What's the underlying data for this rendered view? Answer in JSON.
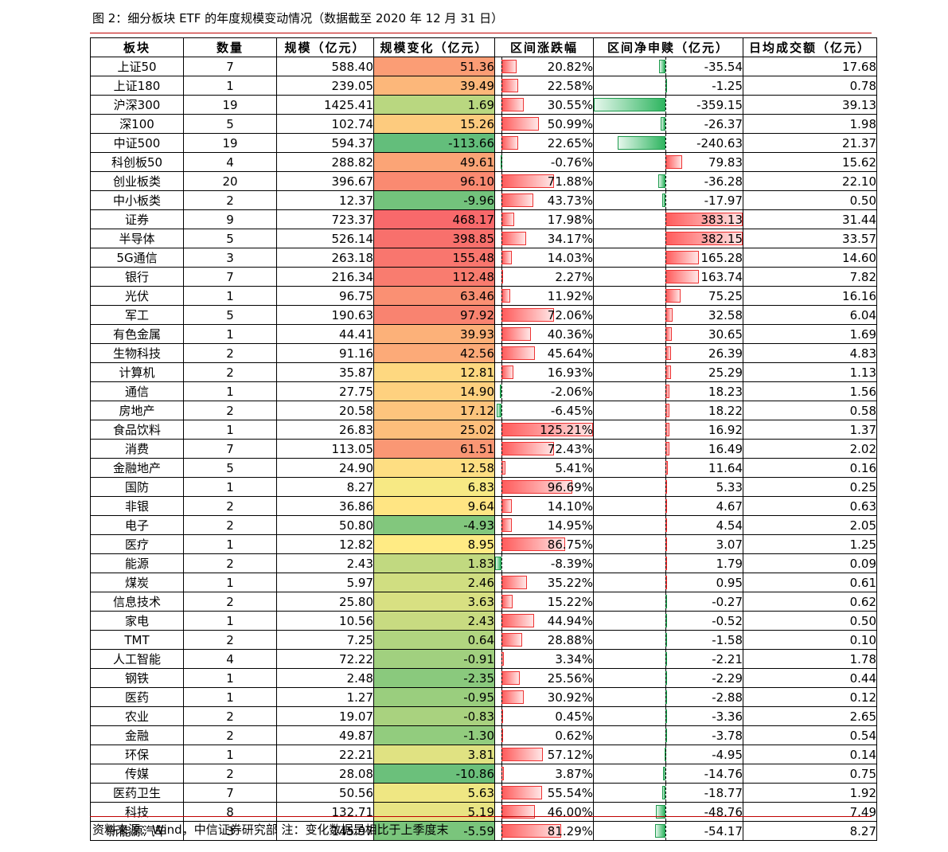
{
  "title": "图 2：细分板块 ETF 的年度规模变动情况（数据截至 2020 年 12 月 31 日）",
  "note": "资料来源：Wind，中信证券研究部  注：变化数据是相比于上季度末",
  "headers": [
    "板块",
    "数量",
    "规模（亿元）",
    "规模变化（亿元）",
    "区间涨跌幅",
    "区间净申赎（亿元）",
    "日均成交额（亿元）"
  ],
  "colors": {
    "rule": "#c00000",
    "bar_positive": "#ff5b5b",
    "bar_negative": "#2fb560",
    "heat_high": "#f8696b",
    "heat_mid": "#ffeb84",
    "heat_low": "#63be7b"
  },
  "rows": [
    {
      "name": "上证50",
      "count": "7",
      "scale": "588.40",
      "change": "51.36",
      "ret": "20.82%",
      "flow": "-35.54",
      "volume": "17.68"
    },
    {
      "name": "上证180",
      "count": "1",
      "scale": "239.05",
      "change": "39.49",
      "ret": "22.58%",
      "flow": "-1.25",
      "volume": "0.78"
    },
    {
      "name": "沪深300",
      "count": "19",
      "scale": "1425.41",
      "change": "1.69",
      "ret": "30.55%",
      "flow": "-359.15",
      "volume": "39.13"
    },
    {
      "name": "深100",
      "count": "5",
      "scale": "102.74",
      "change": "15.26",
      "ret": "50.99%",
      "flow": "-26.37",
      "volume": "1.98"
    },
    {
      "name": "中证500",
      "count": "19",
      "scale": "594.37",
      "change": "-113.66",
      "ret": "22.65%",
      "flow": "-240.63",
      "volume": "21.37"
    },
    {
      "name": "科创板50",
      "count": "4",
      "scale": "288.82",
      "change": "49.61",
      "ret": "-0.76%",
      "flow": "79.83",
      "volume": "15.62"
    },
    {
      "name": "创业板类",
      "count": "20",
      "scale": "396.67",
      "change": "96.10",
      "ret": "71.88%",
      "flow": "-36.28",
      "volume": "22.10"
    },
    {
      "name": "中小板类",
      "count": "2",
      "scale": "12.37",
      "change": "-9.96",
      "ret": "43.73%",
      "flow": "-17.97",
      "volume": "0.50"
    },
    {
      "name": "证券",
      "count": "9",
      "scale": "723.37",
      "change": "468.17",
      "ret": "17.98%",
      "flow": "383.13",
      "volume": "31.44"
    },
    {
      "name": "半导体",
      "count": "5",
      "scale": "526.14",
      "change": "398.85",
      "ret": "34.17%",
      "flow": "382.15",
      "volume": "33.57"
    },
    {
      "name": "5G通信",
      "count": "3",
      "scale": "263.18",
      "change": "155.48",
      "ret": "14.03%",
      "flow": "165.28",
      "volume": "14.60"
    },
    {
      "name": "银行",
      "count": "7",
      "scale": "216.34",
      "change": "112.48",
      "ret": "2.27%",
      "flow": "163.74",
      "volume": "7.82"
    },
    {
      "name": "光伏",
      "count": "1",
      "scale": "96.75",
      "change": "63.46",
      "ret": "11.92%",
      "flow": "75.25",
      "volume": "16.16"
    },
    {
      "name": "军工",
      "count": "5",
      "scale": "190.63",
      "change": "97.92",
      "ret": "72.06%",
      "flow": "32.58",
      "volume": "6.04"
    },
    {
      "name": "有色金属",
      "count": "1",
      "scale": "44.41",
      "change": "39.93",
      "ret": "40.36%",
      "flow": "30.65",
      "volume": "1.69"
    },
    {
      "name": "生物科技",
      "count": "2",
      "scale": "91.16",
      "change": "42.56",
      "ret": "45.64%",
      "flow": "26.39",
      "volume": "4.83"
    },
    {
      "name": "计算机",
      "count": "2",
      "scale": "35.87",
      "change": "12.81",
      "ret": "16.93%",
      "flow": "25.29",
      "volume": "1.13"
    },
    {
      "name": "通信",
      "count": "1",
      "scale": "27.75",
      "change": "14.90",
      "ret": "-2.06%",
      "flow": "18.23",
      "volume": "1.56"
    },
    {
      "name": "房地产",
      "count": "2",
      "scale": "20.58",
      "change": "17.12",
      "ret": "-6.45%",
      "flow": "18.22",
      "volume": "0.58"
    },
    {
      "name": "食品饮料",
      "count": "1",
      "scale": "26.83",
      "change": "25.02",
      "ret": "125.21%",
      "flow": "16.92",
      "volume": "1.37"
    },
    {
      "name": "消费",
      "count": "7",
      "scale": "113.05",
      "change": "61.51",
      "ret": "72.43%",
      "flow": "16.49",
      "volume": "2.02"
    },
    {
      "name": "金融地产",
      "count": "5",
      "scale": "24.90",
      "change": "12.58",
      "ret": "5.41%",
      "flow": "11.64",
      "volume": "0.16"
    },
    {
      "name": "国防",
      "count": "1",
      "scale": "8.27",
      "change": "6.83",
      "ret": "96.69%",
      "flow": "5.33",
      "volume": "0.25"
    },
    {
      "name": "非银",
      "count": "2",
      "scale": "36.86",
      "change": "9.64",
      "ret": "14.10%",
      "flow": "4.67",
      "volume": "0.63"
    },
    {
      "name": "电子",
      "count": "2",
      "scale": "50.80",
      "change": "-4.93",
      "ret": "14.95%",
      "flow": "4.54",
      "volume": "2.05"
    },
    {
      "name": "医疗",
      "count": "1",
      "scale": "12.82",
      "change": "8.95",
      "ret": "86.75%",
      "flow": "3.07",
      "volume": "1.25"
    },
    {
      "name": "能源",
      "count": "2",
      "scale": "2.43",
      "change": "1.83",
      "ret": "-8.39%",
      "flow": "1.79",
      "volume": "0.09"
    },
    {
      "name": "煤炭",
      "count": "1",
      "scale": "5.97",
      "change": "2.46",
      "ret": "35.22%",
      "flow": "0.95",
      "volume": "0.61"
    },
    {
      "name": "信息技术",
      "count": "2",
      "scale": "25.80",
      "change": "3.63",
      "ret": "15.22%",
      "flow": "-0.27",
      "volume": "0.62"
    },
    {
      "name": "家电",
      "count": "1",
      "scale": "10.56",
      "change": "2.43",
      "ret": "44.94%",
      "flow": "-0.52",
      "volume": "0.50"
    },
    {
      "name": "TMT",
      "count": "2",
      "scale": "7.25",
      "change": "0.64",
      "ret": "28.88%",
      "flow": "-1.58",
      "volume": "0.10"
    },
    {
      "name": "人工智能",
      "count": "4",
      "scale": "72.22",
      "change": "-0.91",
      "ret": "3.34%",
      "flow": "-2.21",
      "volume": "1.78"
    },
    {
      "name": "钢铁",
      "count": "1",
      "scale": "2.48",
      "change": "-2.35",
      "ret": "25.56%",
      "flow": "-2.29",
      "volume": "0.44"
    },
    {
      "name": "医药",
      "count": "1",
      "scale": "1.27",
      "change": "-0.95",
      "ret": "30.92%",
      "flow": "-2.88",
      "volume": "0.12"
    },
    {
      "name": "农业",
      "count": "2",
      "scale": "19.07",
      "change": "-0.83",
      "ret": "0.45%",
      "flow": "-3.36",
      "volume": "2.65"
    },
    {
      "name": "金融",
      "count": "2",
      "scale": "49.87",
      "change": "-1.30",
      "ret": "0.62%",
      "flow": "-3.78",
      "volume": "0.54"
    },
    {
      "name": "环保",
      "count": "1",
      "scale": "22.21",
      "change": "3.81",
      "ret": "57.12%",
      "flow": "-4.95",
      "volume": "0.14"
    },
    {
      "name": "传媒",
      "count": "2",
      "scale": "28.08",
      "change": "-10.86",
      "ret": "3.87%",
      "flow": "-14.76",
      "volume": "0.75"
    },
    {
      "name": "医药卫生",
      "count": "7",
      "scale": "50.56",
      "change": "5.63",
      "ret": "55.54%",
      "flow": "-18.77",
      "volume": "1.92"
    },
    {
      "name": "科技",
      "count": "8",
      "scale": "132.71",
      "change": "5.19",
      "ret": "46.00%",
      "flow": "-48.76",
      "volume": "7.49"
    },
    {
      "name": "新能源汽车",
      "count": "3",
      "scale": "145.97",
      "change": "-5.59",
      "ret": "81.29%",
      "flow": "-54.17",
      "volume": "8.27"
    }
  ]
}
